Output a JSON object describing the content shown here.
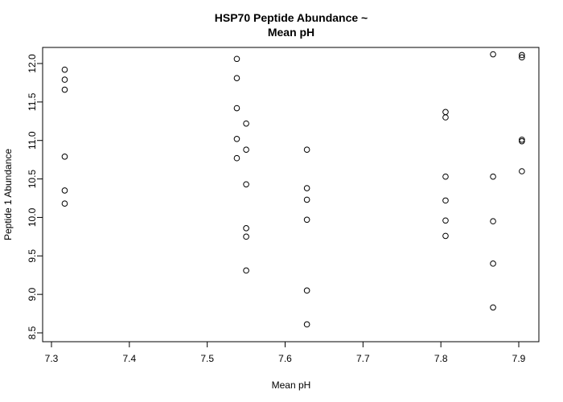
{
  "chart_data": {
    "type": "scatter",
    "title_lines": [
      "HSP70 Peptide Abundance ~",
      "Mean pH"
    ],
    "xlabel": "Mean pH",
    "ylabel": "Peptide 1 Abundance",
    "xlim": [
      7.3,
      7.9
    ],
    "ylim": [
      8.5,
      12.0
    ],
    "xticks": [
      7.3,
      7.4,
      7.5,
      7.6,
      7.7,
      7.8,
      7.9
    ],
    "xtick_labels": [
      "7.3",
      "7.4",
      "7.5",
      "7.6",
      "7.7",
      "7.8",
      "7.9"
    ],
    "yticks": [
      8.5,
      9.0,
      9.5,
      10.0,
      10.5,
      11.0,
      11.5,
      12.0
    ],
    "ytick_labels": [
      "8.5",
      "9.0",
      "9.5",
      "10.0",
      "10.5",
      "11.0",
      "11.5",
      "12.0"
    ],
    "grid": false,
    "marker": "open-circle",
    "points": [
      {
        "x": 7.317,
        "y": 11.92
      },
      {
        "x": 7.317,
        "y": 11.79
      },
      {
        "x": 7.317,
        "y": 11.66
      },
      {
        "x": 7.317,
        "y": 10.79
      },
      {
        "x": 7.317,
        "y": 10.35
      },
      {
        "x": 7.317,
        "y": 10.18
      },
      {
        "x": 7.538,
        "y": 12.06
      },
      {
        "x": 7.538,
        "y": 11.81
      },
      {
        "x": 7.538,
        "y": 11.42
      },
      {
        "x": 7.538,
        "y": 11.02
      },
      {
        "x": 7.538,
        "y": 10.77
      },
      {
        "x": 7.55,
        "y": 11.22
      },
      {
        "x": 7.55,
        "y": 10.88
      },
      {
        "x": 7.55,
        "y": 10.43
      },
      {
        "x": 7.55,
        "y": 9.86
      },
      {
        "x": 7.55,
        "y": 9.75
      },
      {
        "x": 7.55,
        "y": 9.31
      },
      {
        "x": 7.628,
        "y": 10.88
      },
      {
        "x": 7.628,
        "y": 10.38
      },
      {
        "x": 7.628,
        "y": 10.23
      },
      {
        "x": 7.628,
        "y": 9.97
      },
      {
        "x": 7.628,
        "y": 9.05
      },
      {
        "x": 7.628,
        "y": 8.61
      },
      {
        "x": 7.806,
        "y": 11.37
      },
      {
        "x": 7.806,
        "y": 11.3
      },
      {
        "x": 7.806,
        "y": 10.53
      },
      {
        "x": 7.806,
        "y": 10.22
      },
      {
        "x": 7.806,
        "y": 9.96
      },
      {
        "x": 7.806,
        "y": 9.76
      },
      {
        "x": 7.867,
        "y": 12.12
      },
      {
        "x": 7.867,
        "y": 10.53
      },
      {
        "x": 7.867,
        "y": 9.95
      },
      {
        "x": 7.867,
        "y": 9.4
      },
      {
        "x": 7.867,
        "y": 8.83
      },
      {
        "x": 7.904,
        "y": 12.11
      },
      {
        "x": 7.904,
        "y": 12.08
      },
      {
        "x": 7.904,
        "y": 11.01
      },
      {
        "x": 7.904,
        "y": 10.99
      },
      {
        "x": 7.904,
        "y": 10.6
      }
    ]
  }
}
